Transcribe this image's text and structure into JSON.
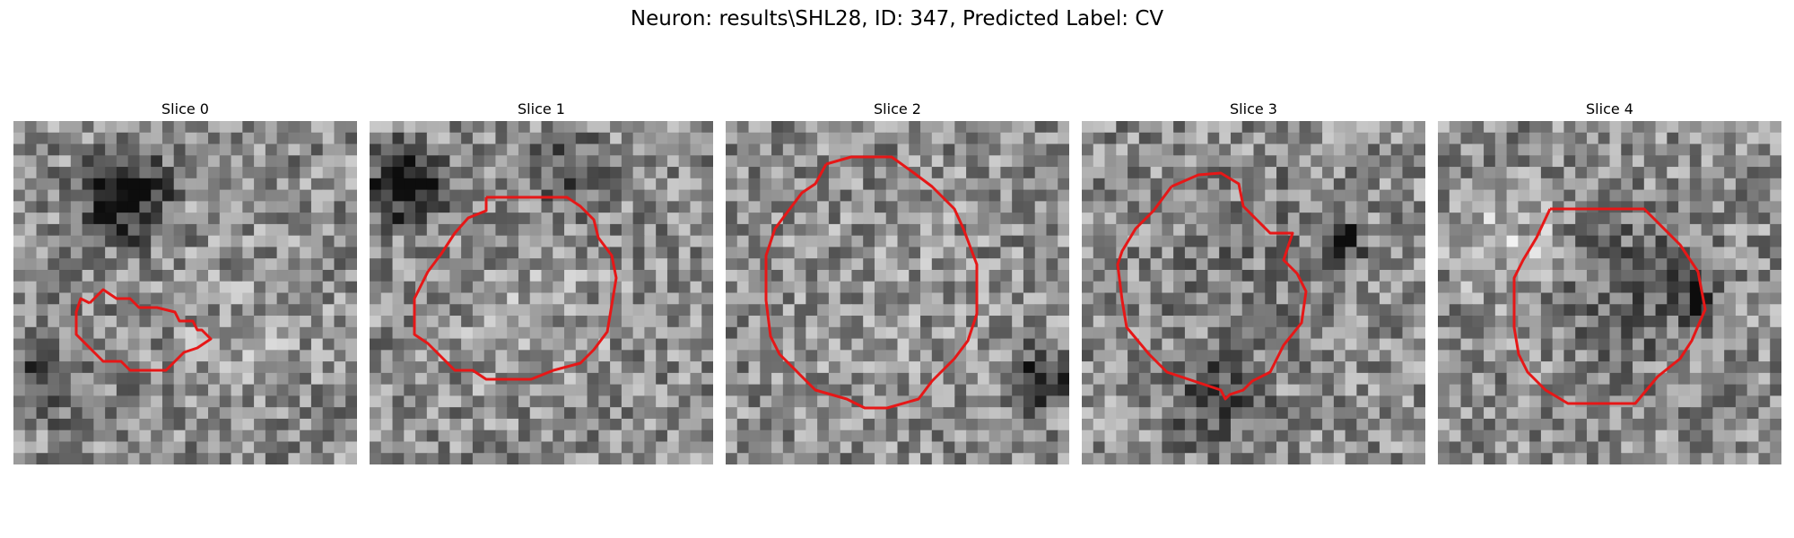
{
  "figure": {
    "title": "Neuron: results\\SHL28, ID: 347, Predicted Label: CV",
    "contour_color": "#ff0000",
    "colormap": "grayscale",
    "slices": [
      {
        "label": "Slice 0"
      },
      {
        "label": "Slice 1"
      },
      {
        "label": "Slice 2"
      },
      {
        "label": "Slice 3"
      },
      {
        "label": "Slice 4"
      }
    ]
  }
}
